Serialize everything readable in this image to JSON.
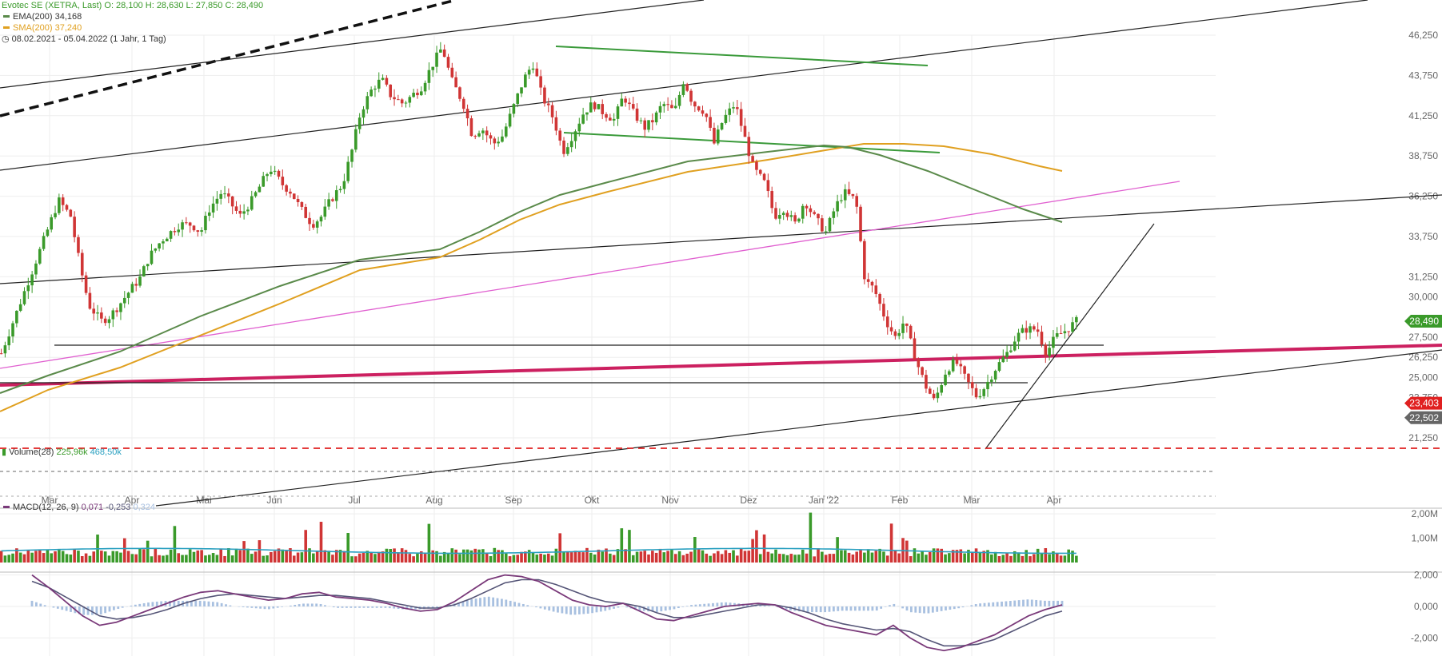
{
  "header": {
    "title": "Evotec SE (XETRA, Last)",
    "ohlc": "O: 28,100  H: 28,630  L: 27,850  C: 28,490",
    "ema_label": "EMA(200)",
    "ema_value": "34,168",
    "sma_label": "SMA(200)",
    "sma_value": "37,240",
    "range_label": "08.02.2021 - 05.04.2022  (1 Jahr, 1 Tag)"
  },
  "volume_panel": {
    "label": "Volume(28)",
    "v1": "225,96k",
    "v2": "468,50k"
  },
  "macd_panel": {
    "label": "MACD(12, 26, 9)",
    "v1": "0,071",
    "v2": "-0,253",
    "v3": "0,324"
  },
  "colors": {
    "up": "#3a9a2a",
    "down": "#d03535",
    "ema": "#5a8a4a",
    "sma": "#e0a020",
    "magenta": "#e060d0",
    "crimson": "#cc2060",
    "green_line": "#3a9a3a",
    "red_level": "#e02020",
    "vol_ma": "#2aa0c0",
    "macd": "#7a3a7a",
    "signal": "#555577",
    "hist": "#a8c0e0",
    "grid": "#eeeeee"
  },
  "chart_data": [
    {
      "type": "candlestick",
      "title": "Evotec SE (XETRA, Last)",
      "months": [
        "Mar",
        "Apr",
        "Mai",
        "Jun",
        "Jul",
        "Aug",
        "Sep",
        "Okt",
        "Nov",
        "Dez",
        "Jan '22",
        "Feb",
        "Mar",
        "Apr"
      ],
      "y_ticks": [
        "46,250",
        "43,750",
        "41,250",
        "38,750",
        "36,250",
        "33,750",
        "31,250",
        "30,000",
        "27,500",
        "26,250",
        "25,000",
        "23,750",
        "21,250"
      ],
      "ylim": [
        21.25,
        46.25
      ],
      "key_prices": [
        {
          "label": "28,490",
          "value": 28.49,
          "color": "#3a9a2a"
        },
        {
          "label": "23,403",
          "value": 23.403,
          "color": "#e02020"
        },
        {
          "label": "22,502",
          "value": 22.502,
          "color": "#666666"
        }
      ],
      "close_path": [
        [
          0,
          34.5
        ],
        [
          0.03,
          36.0
        ],
        [
          0.07,
          35.0
        ],
        [
          0.1,
          32.0
        ],
        [
          0.13,
          29.5
        ],
        [
          0.17,
          28.5
        ],
        [
          0.2,
          28.8
        ],
        [
          0.23,
          29.5
        ],
        [
          0.27,
          30.5
        ],
        [
          0.3,
          31.2
        ],
        [
          0.33,
          32.5
        ],
        [
          0.37,
          33.5
        ],
        [
          0.4,
          34.0
        ],
        [
          0.43,
          34.5
        ],
        [
          0.47,
          34.5
        ],
        [
          0.5,
          34.0
        ],
        [
          0.53,
          35.5
        ],
        [
          0.57,
          36.5
        ],
        [
          0.6,
          35.8
        ],
        [
          0.63,
          35.0
        ],
        [
          0.67,
          36.0
        ],
        [
          0.7,
          37.0
        ],
        [
          0.73,
          38.0
        ],
        [
          0.77,
          37.0
        ],
        [
          0.8,
          36.5
        ],
        [
          0.83,
          35.5
        ],
        [
          0.87,
          34.5
        ],
        [
          0.9,
          35.0
        ],
        [
          0.93,
          36.0
        ],
        [
          0.97,
          37.0
        ],
        [
          1.0,
          39.0
        ],
        [
          1.03,
          41.5
        ],
        [
          1.07,
          43.0
        ],
        [
          1.1,
          43.5
        ],
        [
          1.13,
          42.5
        ],
        [
          1.17,
          42.0
        ],
        [
          1.2,
          42.5
        ],
        [
          1.23,
          43.0
        ],
        [
          1.27,
          44.5
        ],
        [
          1.3,
          45.5
        ],
        [
          1.33,
          43.5
        ],
        [
          1.37,
          42.0
        ],
        [
          1.4,
          40.0
        ],
        [
          1.43,
          40.5
        ],
        [
          1.47,
          39.5
        ],
        [
          1.5,
          40.0
        ],
        [
          1.53,
          41.5
        ],
        [
          1.57,
          43.5
        ],
        [
          1.6,
          44.5
        ],
        [
          1.63,
          42.5
        ],
        [
          1.67,
          41.0
        ],
        [
          1.7,
          39.0
        ],
        [
          1.73,
          40.0
        ],
        [
          1.77,
          41.5
        ],
        [
          1.8,
          42.0
        ],
        [
          1.83,
          41.5
        ],
        [
          1.87,
          41.0
        ],
        [
          1.9,
          42.5
        ],
        [
          1.93,
          41.5
        ],
        [
          1.97,
          40.5
        ],
        [
          2.0,
          41.0
        ],
        [
          2.03,
          42.0
        ],
        [
          2.07,
          41.5
        ],
        [
          2.1,
          43.5
        ],
        [
          2.13,
          42.0
        ],
        [
          2.17,
          41.5
        ],
        [
          2.2,
          39.5
        ],
        [
          2.23,
          41.0
        ],
        [
          2.27,
          42.0
        ],
        [
          2.3,
          40.0
        ],
        [
          2.33,
          38.0
        ],
        [
          2.37,
          37.0
        ],
        [
          2.4,
          35.0
        ],
        [
          2.43,
          35.5
        ],
        [
          2.47,
          34.5
        ],
        [
          2.5,
          36.0
        ],
        [
          2.53,
          35.0
        ],
        [
          2.57,
          34.0
        ],
        [
          2.6,
          35.5
        ],
        [
          2.63,
          36.5
        ],
        [
          2.67,
          36.0
        ],
        [
          2.7,
          31.0
        ],
        [
          2.73,
          30.5
        ],
        [
          2.77,
          28.5
        ],
        [
          2.8,
          27.5
        ],
        [
          2.83,
          28.5
        ],
        [
          2.87,
          26.0
        ],
        [
          2.9,
          24.5
        ],
        [
          2.93,
          23.5
        ],
        [
          2.97,
          25.5
        ],
        [
          3.0,
          26.0
        ],
        [
          3.03,
          25.0
        ],
        [
          3.07,
          23.8
        ],
        [
          3.1,
          24.5
        ],
        [
          3.13,
          25.5
        ],
        [
          3.17,
          26.5
        ],
        [
          3.2,
          27.5
        ],
        [
          3.23,
          28.0
        ],
        [
          3.27,
          28.0
        ],
        [
          3.3,
          26.5
        ],
        [
          3.33,
          27.5
        ],
        [
          3.37,
          28.0
        ],
        [
          3.4,
          28.49
        ]
      ]
    },
    {
      "type": "bar",
      "title": "Volume(28)",
      "y_ticks": [
        "2,00M",
        "1,00M"
      ],
      "ylim": [
        0,
        2.2
      ]
    },
    {
      "type": "line",
      "title": "MACD(12, 26, 9)",
      "y_ticks": [
        "2,000",
        "0,000",
        "-2,000"
      ],
      "ylim": [
        -2.8,
        2.5
      ],
      "series": [
        {
          "name": "",
          "values": [
            2.0,
            1.2,
            0.3,
            -0.6,
            -1.2,
            -1.0,
            -0.6,
            -0.2,
            0.2,
            0.6,
            0.9,
            1.0,
            0.8,
            0.6,
            0.4,
            0.5,
            0.8,
            0.9,
            0.6,
            0.5,
            0.4,
            0.2,
            -0.1,
            -0.3,
            -0.2,
            0.3,
            1.0,
            1.7,
            2.0,
            1.9,
            1.6,
            1.0,
            0.4,
            0.1,
            0.0,
            0.2,
            -0.3,
            -0.8,
            -0.9,
            -0.6,
            -0.3,
            0.0,
            0.1,
            0.2,
            0.1,
            -0.4,
            -0.8,
            -1.2,
            -1.4,
            -1.6,
            -1.8,
            -1.2,
            -2.0,
            -2.6,
            -2.8,
            -2.6,
            -2.2,
            -1.8,
            -1.2,
            -0.6,
            -0.2,
            0.1
          ]
        },
        {
          "name": "",
          "values": [
            1.6,
            1.2,
            0.6,
            0.0,
            -0.6,
            -0.8,
            -0.7,
            -0.5,
            -0.2,
            0.2,
            0.5,
            0.7,
            0.8,
            0.7,
            0.6,
            0.5,
            0.6,
            0.7,
            0.7,
            0.6,
            0.5,
            0.3,
            0.1,
            -0.1,
            -0.1,
            0.1,
            0.5,
            1.0,
            1.5,
            1.7,
            1.7,
            1.4,
            1.0,
            0.6,
            0.3,
            0.2,
            0.0,
            -0.4,
            -0.7,
            -0.7,
            -0.5,
            -0.3,
            -0.1,
            0.1,
            0.1,
            -0.1,
            -0.4,
            -0.8,
            -1.1,
            -1.3,
            -1.5,
            -1.4,
            -1.6,
            -2.1,
            -2.5,
            -2.5,
            -2.4,
            -2.1,
            -1.6,
            -1.1,
            -0.6,
            -0.3
          ]
        }
      ]
    }
  ]
}
